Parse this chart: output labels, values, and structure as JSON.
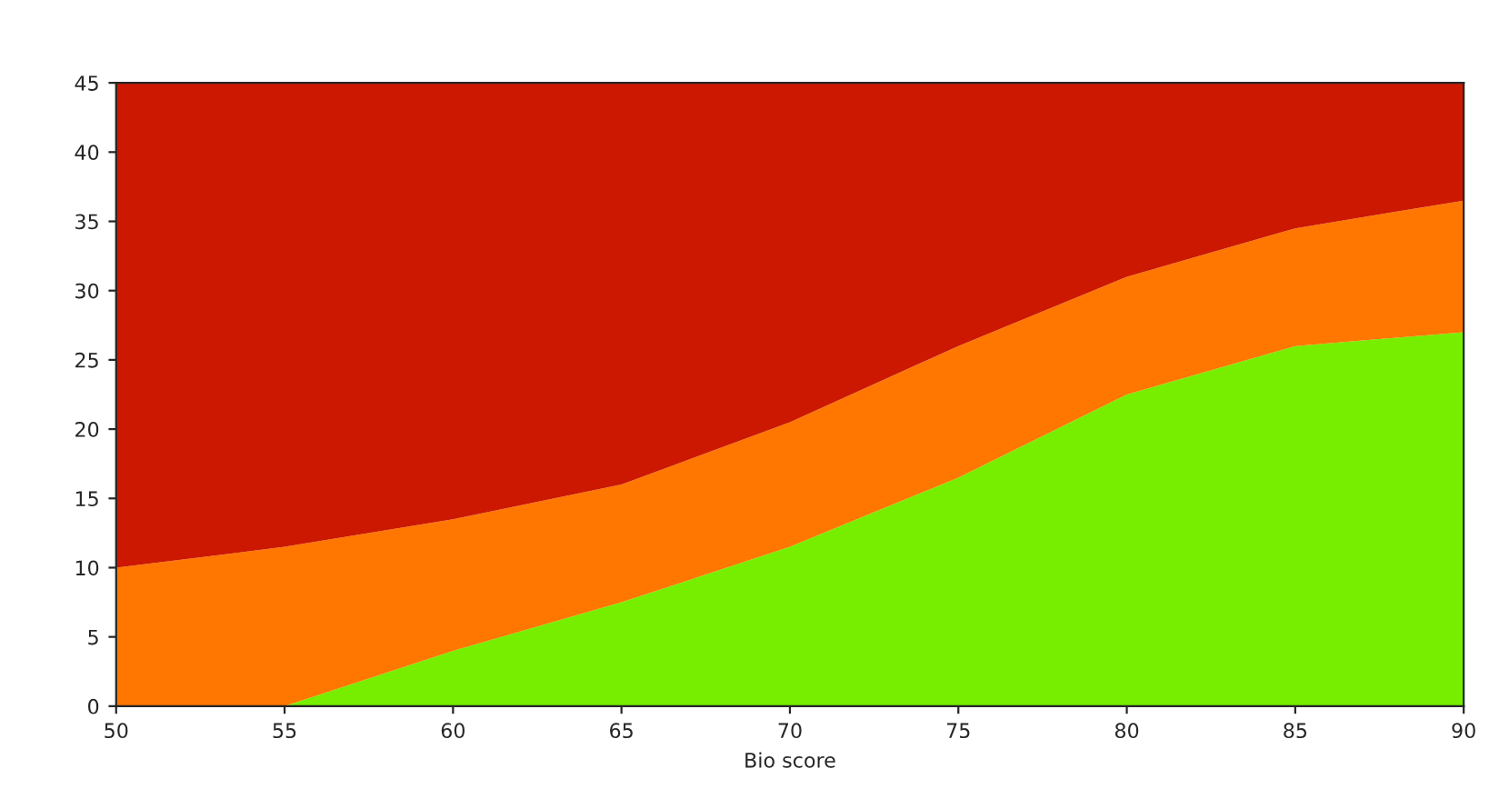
{
  "chart_data": {
    "type": "area",
    "stacked": true,
    "xlabel": "Bio score",
    "x": [
      50,
      55,
      60,
      65,
      70,
      75,
      80,
      85,
      90
    ],
    "series": [
      {
        "color": "#77ee00",
        "values": [
          0,
          0,
          4,
          7.5,
          11.5,
          16.5,
          22.5,
          26,
          27
        ]
      },
      {
        "color": "#ff7700",
        "values": [
          10,
          11.5,
          9.5,
          8.5,
          9,
          9.5,
          8.5,
          8.5,
          9.5
        ]
      },
      {
        "color": "#cc1800",
        "values": [
          35,
          33.5,
          31.5,
          29,
          24.5,
          19,
          14,
          10.5,
          8.5
        ]
      }
    ],
    "xlim": [
      50,
      90
    ],
    "xticks": [
      50,
      55,
      60,
      65,
      70,
      75,
      80,
      85,
      90
    ],
    "ylim": [
      0,
      45
    ],
    "yticks": [
      0,
      5,
      10,
      15,
      20,
      25,
      30,
      35,
      40,
      45
    ]
  }
}
